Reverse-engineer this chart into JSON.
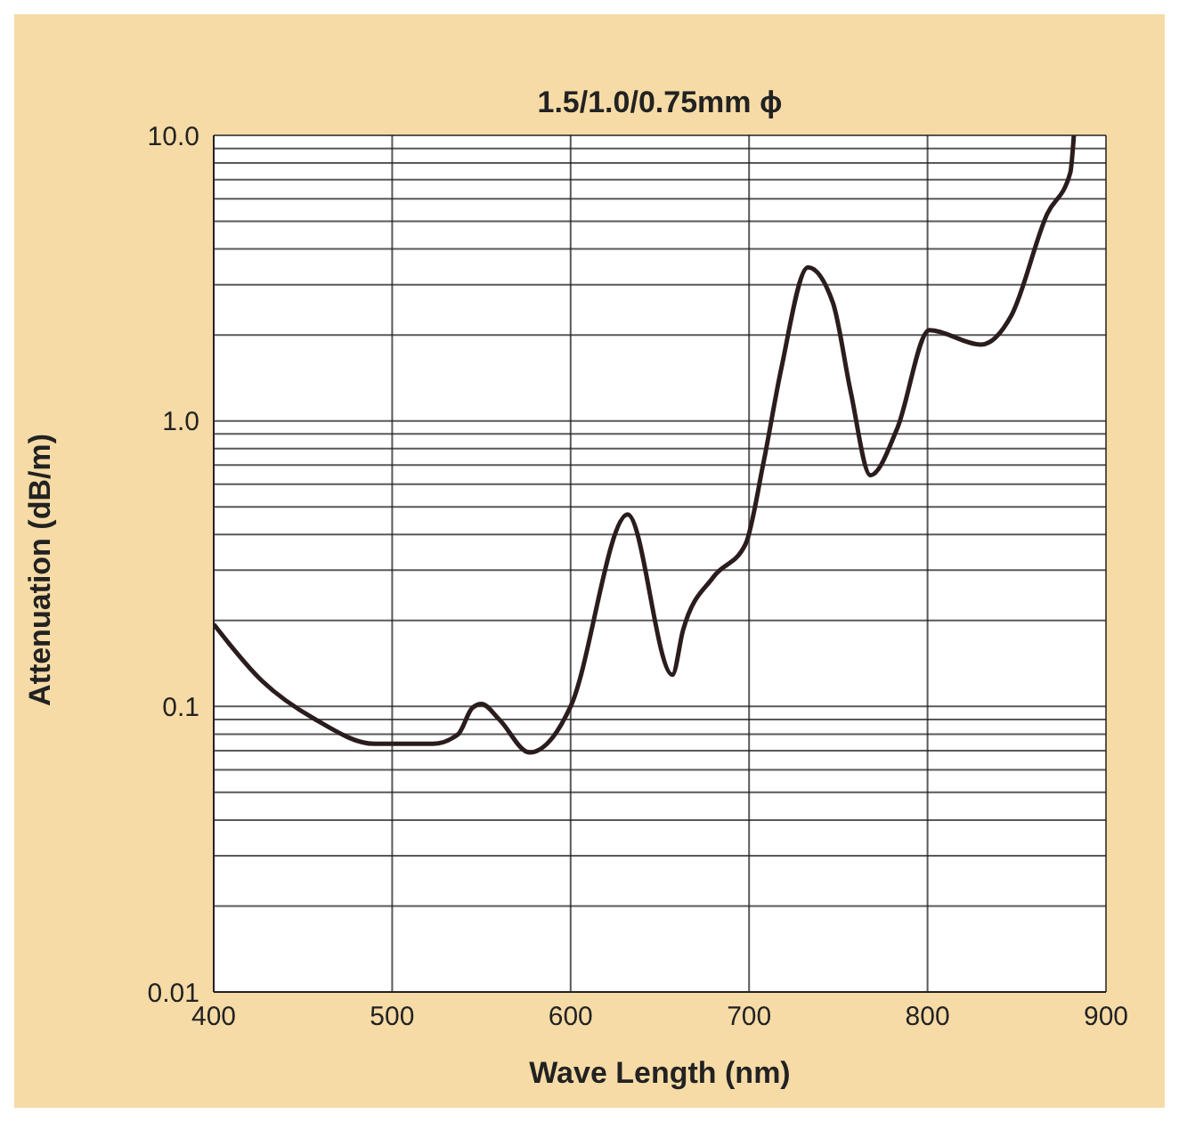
{
  "chart_data": {
    "type": "line",
    "title": "1.5/1.0/0.75mm ϕ",
    "xlabel": "Wave Length (nm)",
    "ylabel": "Attenuation (dB/m)",
    "x": [
      400,
      427,
      457,
      490,
      523,
      537,
      545,
      550,
      560,
      577,
      590,
      600,
      632,
      657,
      663,
      680,
      698,
      708,
      718,
      733,
      747,
      757,
      768,
      783,
      801,
      830,
      847,
      867,
      880,
      882
    ],
    "series": [
      {
        "color": "#2b1d1d",
        "values": [
          0.194,
          0.123,
          0.09,
          0.074,
          0.074,
          0.08,
          0.099,
          0.102,
          0.09,
          0.069,
          0.078,
          0.1,
          0.47,
          0.129,
          0.185,
          0.284,
          0.37,
          0.71,
          1.52,
          3.45,
          2.59,
          1.26,
          0.645,
          0.94,
          2.08,
          1.85,
          2.34,
          5.3,
          7.4,
          10.0
        ]
      }
    ],
    "xlim": [
      400,
      900
    ],
    "xticks": [
      400,
      500,
      600,
      700,
      800,
      900
    ],
    "ylim": [
      0.01,
      10
    ],
    "log": true,
    "yticks": [
      {
        "value": 0.01,
        "label": "0.01"
      },
      {
        "value": 0.02,
        "label": null
      },
      {
        "value": 0.03,
        "label": null
      },
      {
        "value": 0.04,
        "label": null
      },
      {
        "value": 0.05,
        "label": null
      },
      {
        "value": 0.06,
        "label": null
      },
      {
        "value": 0.07,
        "label": null
      },
      {
        "value": 0.08,
        "label": null
      },
      {
        "value": 0.09,
        "label": null
      },
      {
        "value": 0.1,
        "label": "0.1"
      },
      {
        "value": 0.2,
        "label": null
      },
      {
        "value": 0.3,
        "label": null
      },
      {
        "value": 0.4,
        "label": null
      },
      {
        "value": 0.5,
        "label": null
      },
      {
        "value": 0.6,
        "label": null
      },
      {
        "value": 0.7,
        "label": null
      },
      {
        "value": 0.8,
        "label": null
      },
      {
        "value": 0.9,
        "label": null
      },
      {
        "value": 1,
        "label": "1.0"
      },
      {
        "value": 2,
        "label": null
      },
      {
        "value": 3,
        "label": null
      },
      {
        "value": 4,
        "label": null
      },
      {
        "value": 5,
        "label": null
      },
      {
        "value": 6,
        "label": null
      },
      {
        "value": 7,
        "label": null
      },
      {
        "value": 8,
        "label": null
      },
      {
        "value": 9,
        "label": null
      },
      {
        "value": 10,
        "label": "10.0"
      }
    ],
    "grid": true,
    "marker": "none",
    "line_style": "solid",
    "legend": false
  }
}
